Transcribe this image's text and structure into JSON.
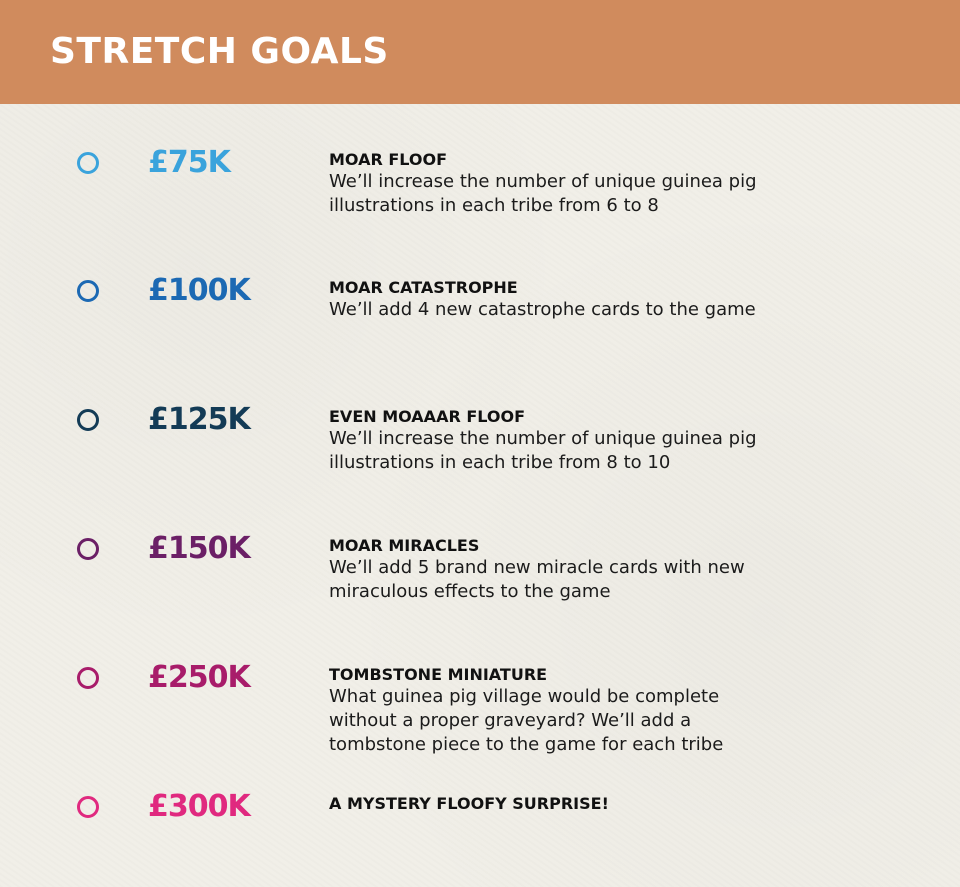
{
  "header": {
    "title": "STRETCH GOALS",
    "background_color": "#d08b5d"
  },
  "goals": [
    {
      "amount": "£75K",
      "title": "MOAR FLOOF",
      "description": "We’ll increase the number of unique guinea pig\nillustrations in each tribe from 6 to 8",
      "color": "#3aa3dc"
    },
    {
      "amount": "£100K",
      "title": "MOAR CATASTROPHE",
      "description": "We’ll add 4 new catastrophe cards to the game",
      "color": "#1c69b3"
    },
    {
      "amount": "£125K",
      "title": "EVEN MOAAAR FLOOF",
      "description": "We’ll increase the number of unique guinea pig\nillustrations in each tribe from 8 to 10",
      "color": "#133b56"
    },
    {
      "amount": "£150K",
      "title": "MOAR MIRACLES",
      "description": "We’ll add 5 brand new miracle cards with new\nmiraculous effects to the game",
      "color": "#6b1f66"
    },
    {
      "amount": "£250K",
      "title": "TOMBSTONE MINIATURE",
      "description": "What guinea pig village would be complete\nwithout a proper graveyard? We’ll add a\ntombstone piece to the game for each tribe",
      "color": "#a81c6a"
    },
    {
      "amount": "£300K",
      "title": "A MYSTERY FLOOFY SURPRISE!",
      "description": "",
      "color": "#e0297f"
    }
  ]
}
